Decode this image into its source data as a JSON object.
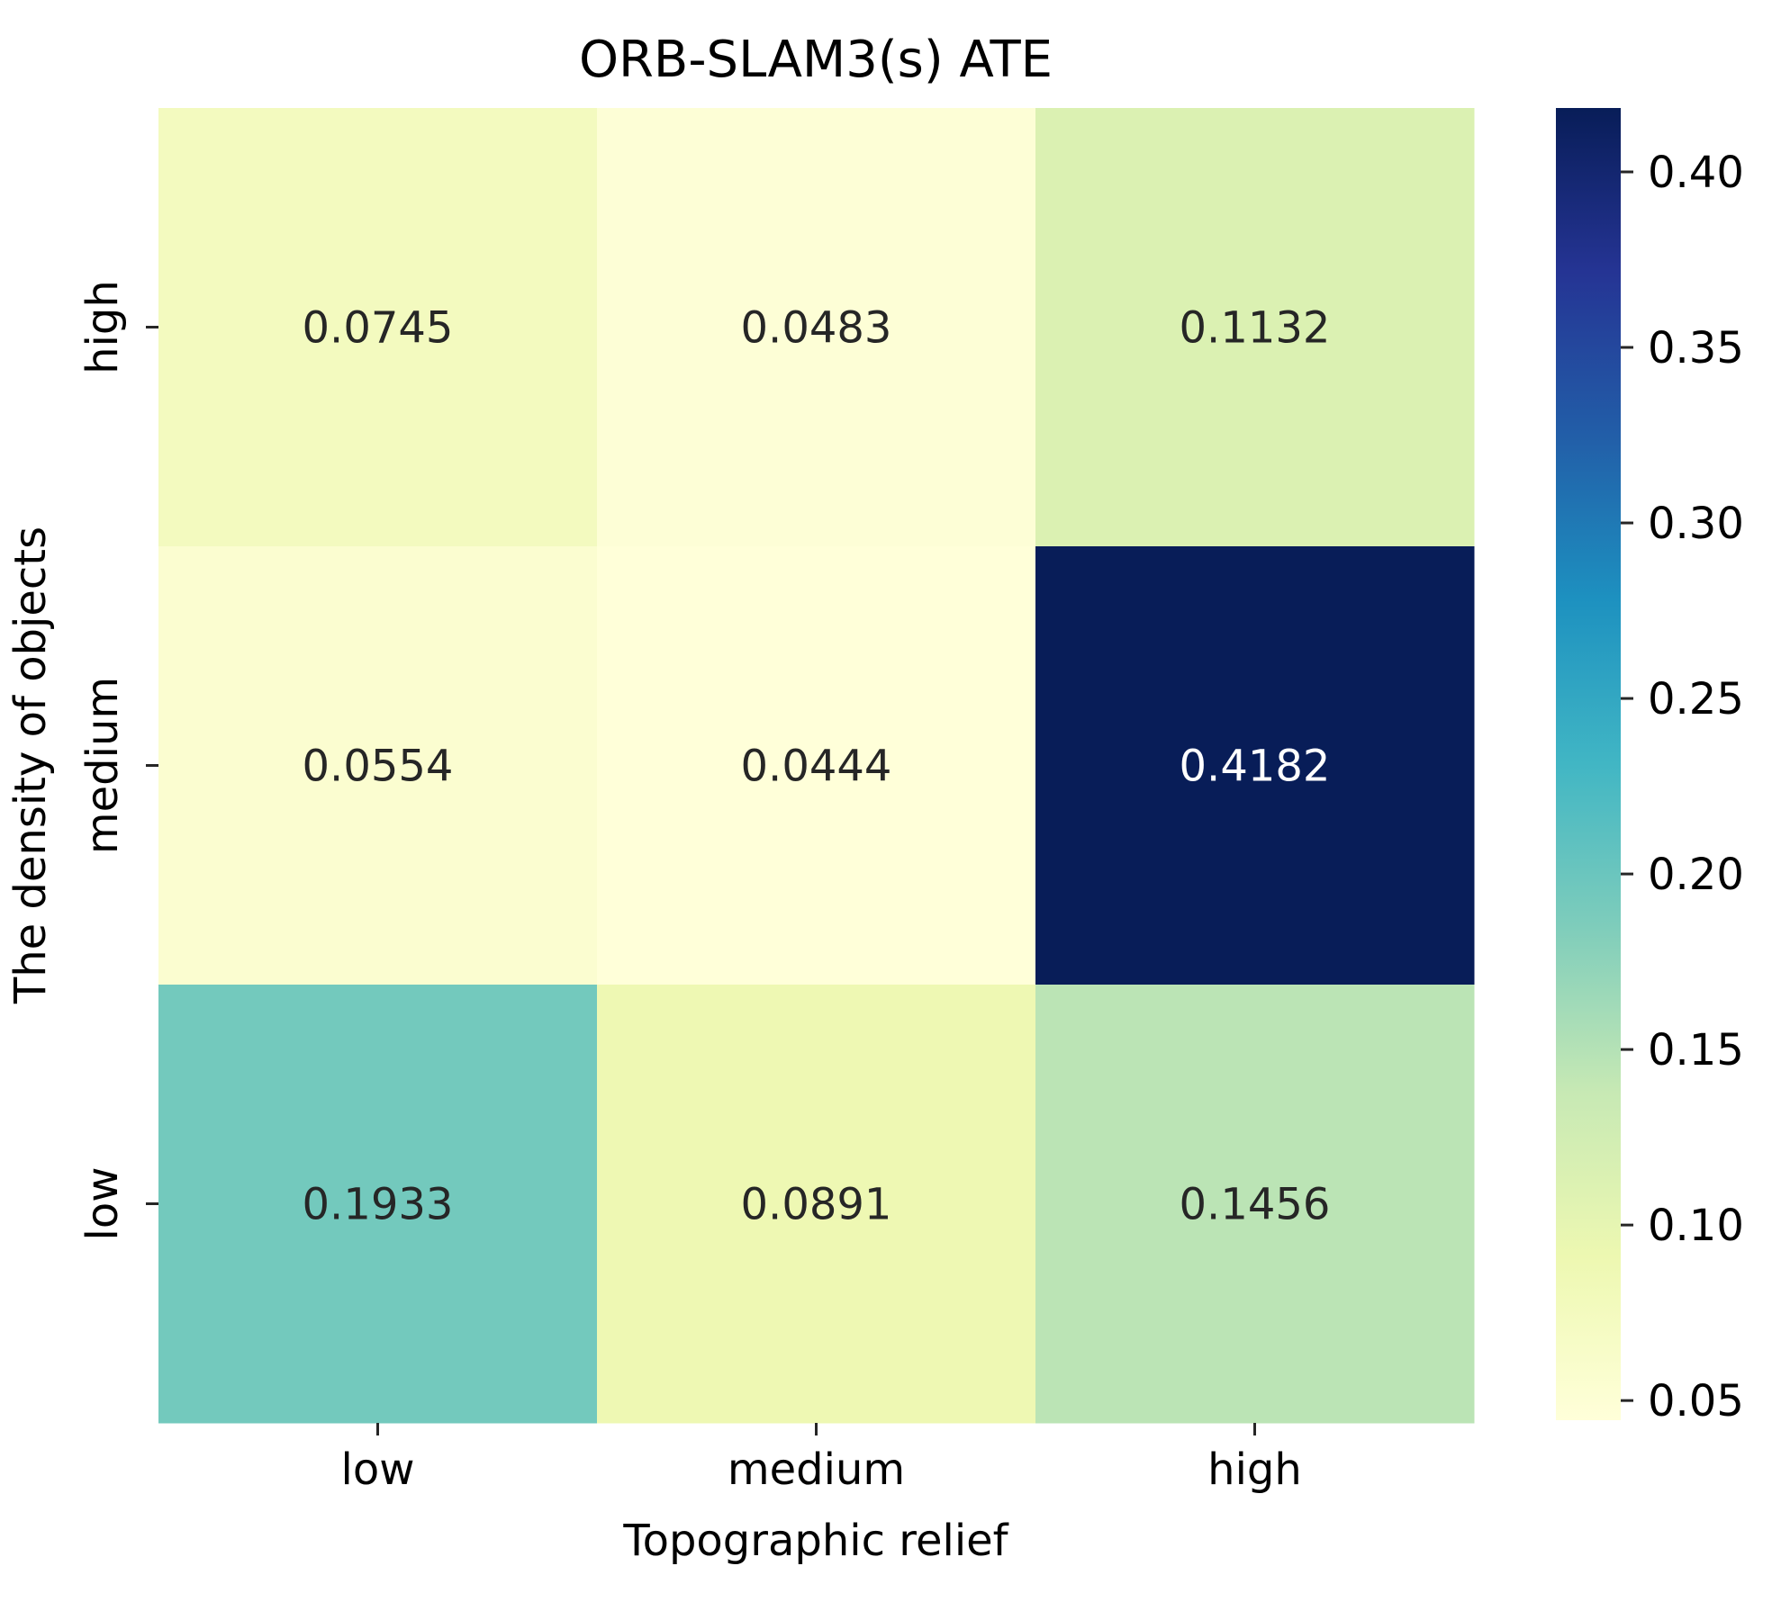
{
  "chart_data": {
    "type": "heatmap",
    "title": "ORB-SLAM3(s) ATE",
    "xlabel": "Topographic relief",
    "ylabel": "The density of objects",
    "x_categories": [
      "low",
      "medium",
      "high"
    ],
    "y_categories": [
      "high",
      "medium",
      "low"
    ],
    "values": [
      [
        0.0745,
        0.0483,
        0.1132
      ],
      [
        0.0554,
        0.0444,
        0.4182
      ],
      [
        0.1933,
        0.0891,
        0.1456
      ]
    ],
    "value_labels": [
      [
        "0.0745",
        "0.0483",
        "0.1132"
      ],
      [
        "0.0554",
        "0.0444",
        "0.4182"
      ],
      [
        "0.1933",
        "0.0891",
        "0.1456"
      ]
    ],
    "colormap": "YlGnBu",
    "colorbar": {
      "vmin": 0.0444,
      "vmax": 0.4182,
      "ticks": [
        0.05,
        0.1,
        0.15,
        0.2,
        0.25,
        0.3,
        0.35,
        0.4
      ],
      "tick_labels": [
        "0.05",
        "0.10",
        "0.15",
        "0.20",
        "0.25",
        "0.30",
        "0.35",
        "0.40"
      ]
    },
    "colors": {
      "text_dark": "#262626",
      "text_light": "#ffffff",
      "axis": "#262626"
    }
  }
}
